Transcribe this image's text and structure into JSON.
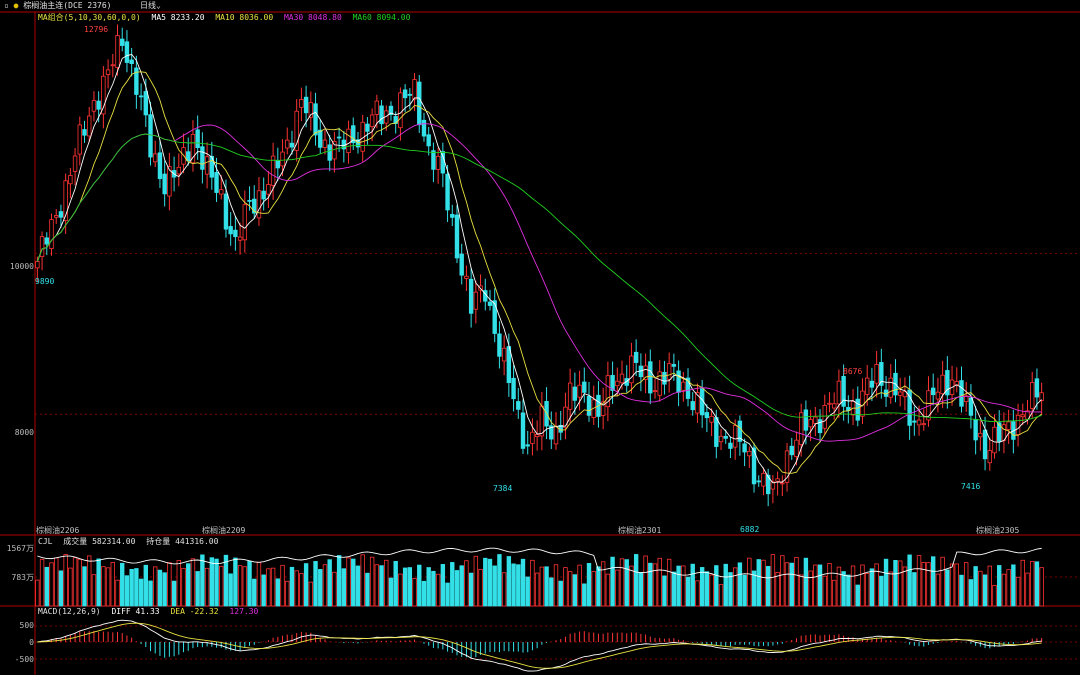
{
  "window": {
    "title": "棕榈油主连(DCE 2376)",
    "period_label": "日线",
    "period_icon": "chevron-down-icon",
    "title_icon": "square-icon"
  },
  "colors": {
    "up": "#ff3333",
    "down": "#33e0e8",
    "ma5": "#ffffff",
    "ma10": "#e8e040",
    "ma30": "#e030e0",
    "ma60": "#20d020",
    "oi_line": "#ffffff",
    "dea": "#e8e040",
    "diff": "#ffffff",
    "frame": "#b00000",
    "grid": "#7a0000"
  },
  "ma_legend": {
    "name": "MA组合(5,10,30,60,0,0)",
    "ma5": "MA5 8233.20",
    "ma10": "MA10 8036.00",
    "ma30": "MA30 8048.80",
    "ma60": "MA60 8094.00"
  },
  "volume_legend": {
    "name": "CJL",
    "volume": "成交量 582314.00",
    "open_interest": "持仓量 441316.00"
  },
  "macd_legend": {
    "name": "MACD(12,26,9)",
    "diff": "DIFF 41.33",
    "dea": "DEA -22.32",
    "macd": "127.30"
  },
  "price_axis": {
    "labels": [
      "10000",
      "8000"
    ]
  },
  "volume_axis": {
    "labels": [
      "1567万",
      "783万"
    ]
  },
  "macd_axis": {
    "labels": [
      "500",
      "0",
      "-500"
    ]
  },
  "annotations": {
    "high": "12796",
    "low1": "9890",
    "low2": "7384",
    "low3": "6882",
    "high2": "8676",
    "low4": "7416"
  },
  "contracts": [
    "棕榈油2206",
    "棕榈油2209",
    "棕榈油2301",
    "棕榈油2305"
  ],
  "chart_data": {
    "type": "candlestick",
    "title": "棕榈油主连(DCE 2376)",
    "period": "日线",
    "ylim": [
      6500,
      13000
    ],
    "price_anchors": [
      {
        "i": 0,
        "p": 9900
      },
      {
        "i": 3,
        "p": 10300
      },
      {
        "i": 8,
        "p": 11200
      },
      {
        "i": 12,
        "p": 11900
      },
      {
        "i": 15,
        "p": 12200
      },
      {
        "i": 18,
        "p": 12700
      },
      {
        "i": 21,
        "p": 12100
      },
      {
        "i": 24,
        "p": 11300
      },
      {
        "i": 27,
        "p": 10900
      },
      {
        "i": 30,
        "p": 11000
      },
      {
        "i": 33,
        "p": 11500
      },
      {
        "i": 36,
        "p": 11000
      },
      {
        "i": 39,
        "p": 10700
      },
      {
        "i": 42,
        "p": 10100
      },
      {
        "i": 45,
        "p": 10600
      },
      {
        "i": 48,
        "p": 10800
      },
      {
        "i": 52,
        "p": 11200
      },
      {
        "i": 56,
        "p": 11900
      },
      {
        "i": 60,
        "p": 11400
      },
      {
        "i": 64,
        "p": 11300
      },
      {
        "i": 68,
        "p": 11500
      },
      {
        "i": 72,
        "p": 11700
      },
      {
        "i": 76,
        "p": 11800
      },
      {
        "i": 80,
        "p": 12000
      },
      {
        "i": 83,
        "p": 11300
      },
      {
        "i": 86,
        "p": 10900
      },
      {
        "i": 89,
        "p": 10100
      },
      {
        "i": 92,
        "p": 9300
      },
      {
        "i": 95,
        "p": 9600
      },
      {
        "i": 98,
        "p": 8800
      },
      {
        "i": 101,
        "p": 8200
      },
      {
        "i": 104,
        "p": 7600
      },
      {
        "i": 107,
        "p": 7900
      },
      {
        "i": 110,
        "p": 7800
      },
      {
        "i": 113,
        "p": 8200
      },
      {
        "i": 116,
        "p": 8300
      },
      {
        "i": 119,
        "p": 8000
      },
      {
        "i": 122,
        "p": 8400
      },
      {
        "i": 126,
        "p": 8600
      },
      {
        "i": 130,
        "p": 8400
      },
      {
        "i": 134,
        "p": 8500
      },
      {
        "i": 138,
        "p": 8300
      },
      {
        "i": 142,
        "p": 7900
      },
      {
        "i": 146,
        "p": 7700
      },
      {
        "i": 150,
        "p": 7600
      },
      {
        "i": 153,
        "p": 7200
      },
      {
        "i": 156,
        "p": 7000
      },
      {
        "i": 159,
        "p": 7500
      },
      {
        "i": 162,
        "p": 7800
      },
      {
        "i": 166,
        "p": 8000
      },
      {
        "i": 170,
        "p": 8200
      },
      {
        "i": 174,
        "p": 8100
      },
      {
        "i": 178,
        "p": 8500
      },
      {
        "i": 182,
        "p": 8300
      },
      {
        "i": 186,
        "p": 7900
      },
      {
        "i": 190,
        "p": 8200
      },
      {
        "i": 194,
        "p": 8500
      },
      {
        "i": 198,
        "p": 7900
      },
      {
        "i": 201,
        "p": 7600
      },
      {
        "i": 204,
        "p": 7700
      },
      {
        "i": 207,
        "p": 7900
      },
      {
        "i": 210,
        "p": 8100
      },
      {
        "i": 213,
        "p": 8300
      }
    ],
    "candle_count": 214,
    "ma_periods": [
      5,
      10,
      30,
      60
    ],
    "series": [
      {
        "name": "MA5",
        "value": 8233.2
      },
      {
        "name": "MA10",
        "value": 8036.0
      },
      {
        "name": "MA30",
        "value": 8048.8
      },
      {
        "name": "MA60",
        "value": 8094.0
      }
    ],
    "marked_points": [
      {
        "label": "12796",
        "i": 17
      },
      {
        "label": "9890",
        "i": 0
      },
      {
        "label": "7384",
        "i": 104
      },
      {
        "label": "6882",
        "i": 156
      },
      {
        "label": "8676",
        "i": 177
      },
      {
        "label": "7416",
        "i": 199
      }
    ],
    "contract_switch_indices": [
      0,
      40,
      118,
      195
    ],
    "volume": {
      "latest": 582314.0,
      "ylim": [
        0,
        15670000
      ],
      "ticks": [
        "1567万",
        "783万"
      ]
    },
    "open_interest": {
      "latest": 441316.0
    },
    "macd": {
      "params": [
        12,
        26,
        9
      ],
      "diff": 41.33,
      "dea": -22.32,
      "macd": 127.3,
      "ylim": [
        -800,
        800
      ]
    }
  }
}
